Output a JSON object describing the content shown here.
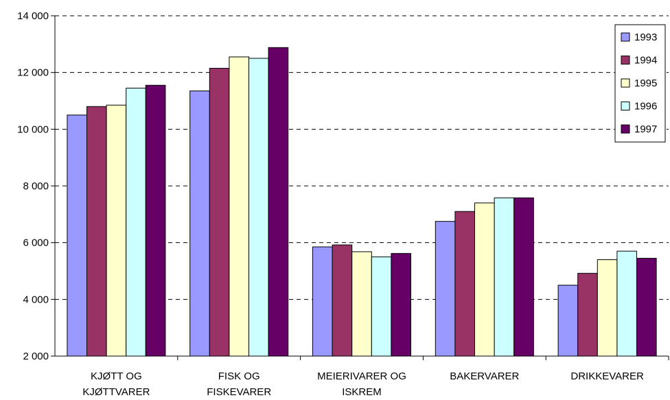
{
  "chart_data": {
    "type": "bar",
    "title": "",
    "xlabel": "",
    "ylabel": "",
    "ylim": [
      2000,
      14000
    ],
    "yticks": [
      2000,
      4000,
      6000,
      8000,
      10000,
      12000,
      14000
    ],
    "ytick_labels": [
      "2 000",
      "4 000",
      "6 000",
      "8 000",
      "10 000",
      "12 000",
      "14 000"
    ],
    "grid": "horizontal dashed",
    "legend_position": "top-right",
    "categories": [
      [
        "KJØTT OG",
        "KJØTTVARER"
      ],
      [
        "FISK OG",
        "FISKEVARER"
      ],
      [
        "MEIERIVARER OG",
        "ISKREM"
      ],
      [
        "BAKERVARER"
      ],
      [
        "DRIKKEVARER"
      ]
    ],
    "series": [
      {
        "name": "1993",
        "color": "#9999ff",
        "values": [
          10500,
          11350,
          5850,
          6750,
          4500
        ]
      },
      {
        "name": "1994",
        "color": "#993366",
        "values": [
          10800,
          12150,
          5920,
          7100,
          4920
        ]
      },
      {
        "name": "1995",
        "color": "#ffffcc",
        "values": [
          10850,
          12550,
          5680,
          7400,
          5400
        ]
      },
      {
        "name": "1996",
        "color": "#ccffff",
        "values": [
          11450,
          12500,
          5500,
          7580,
          5700
        ]
      },
      {
        "name": "1997",
        "color": "#660066",
        "values": [
          11550,
          12880,
          5620,
          7580,
          5450
        ]
      }
    ]
  }
}
